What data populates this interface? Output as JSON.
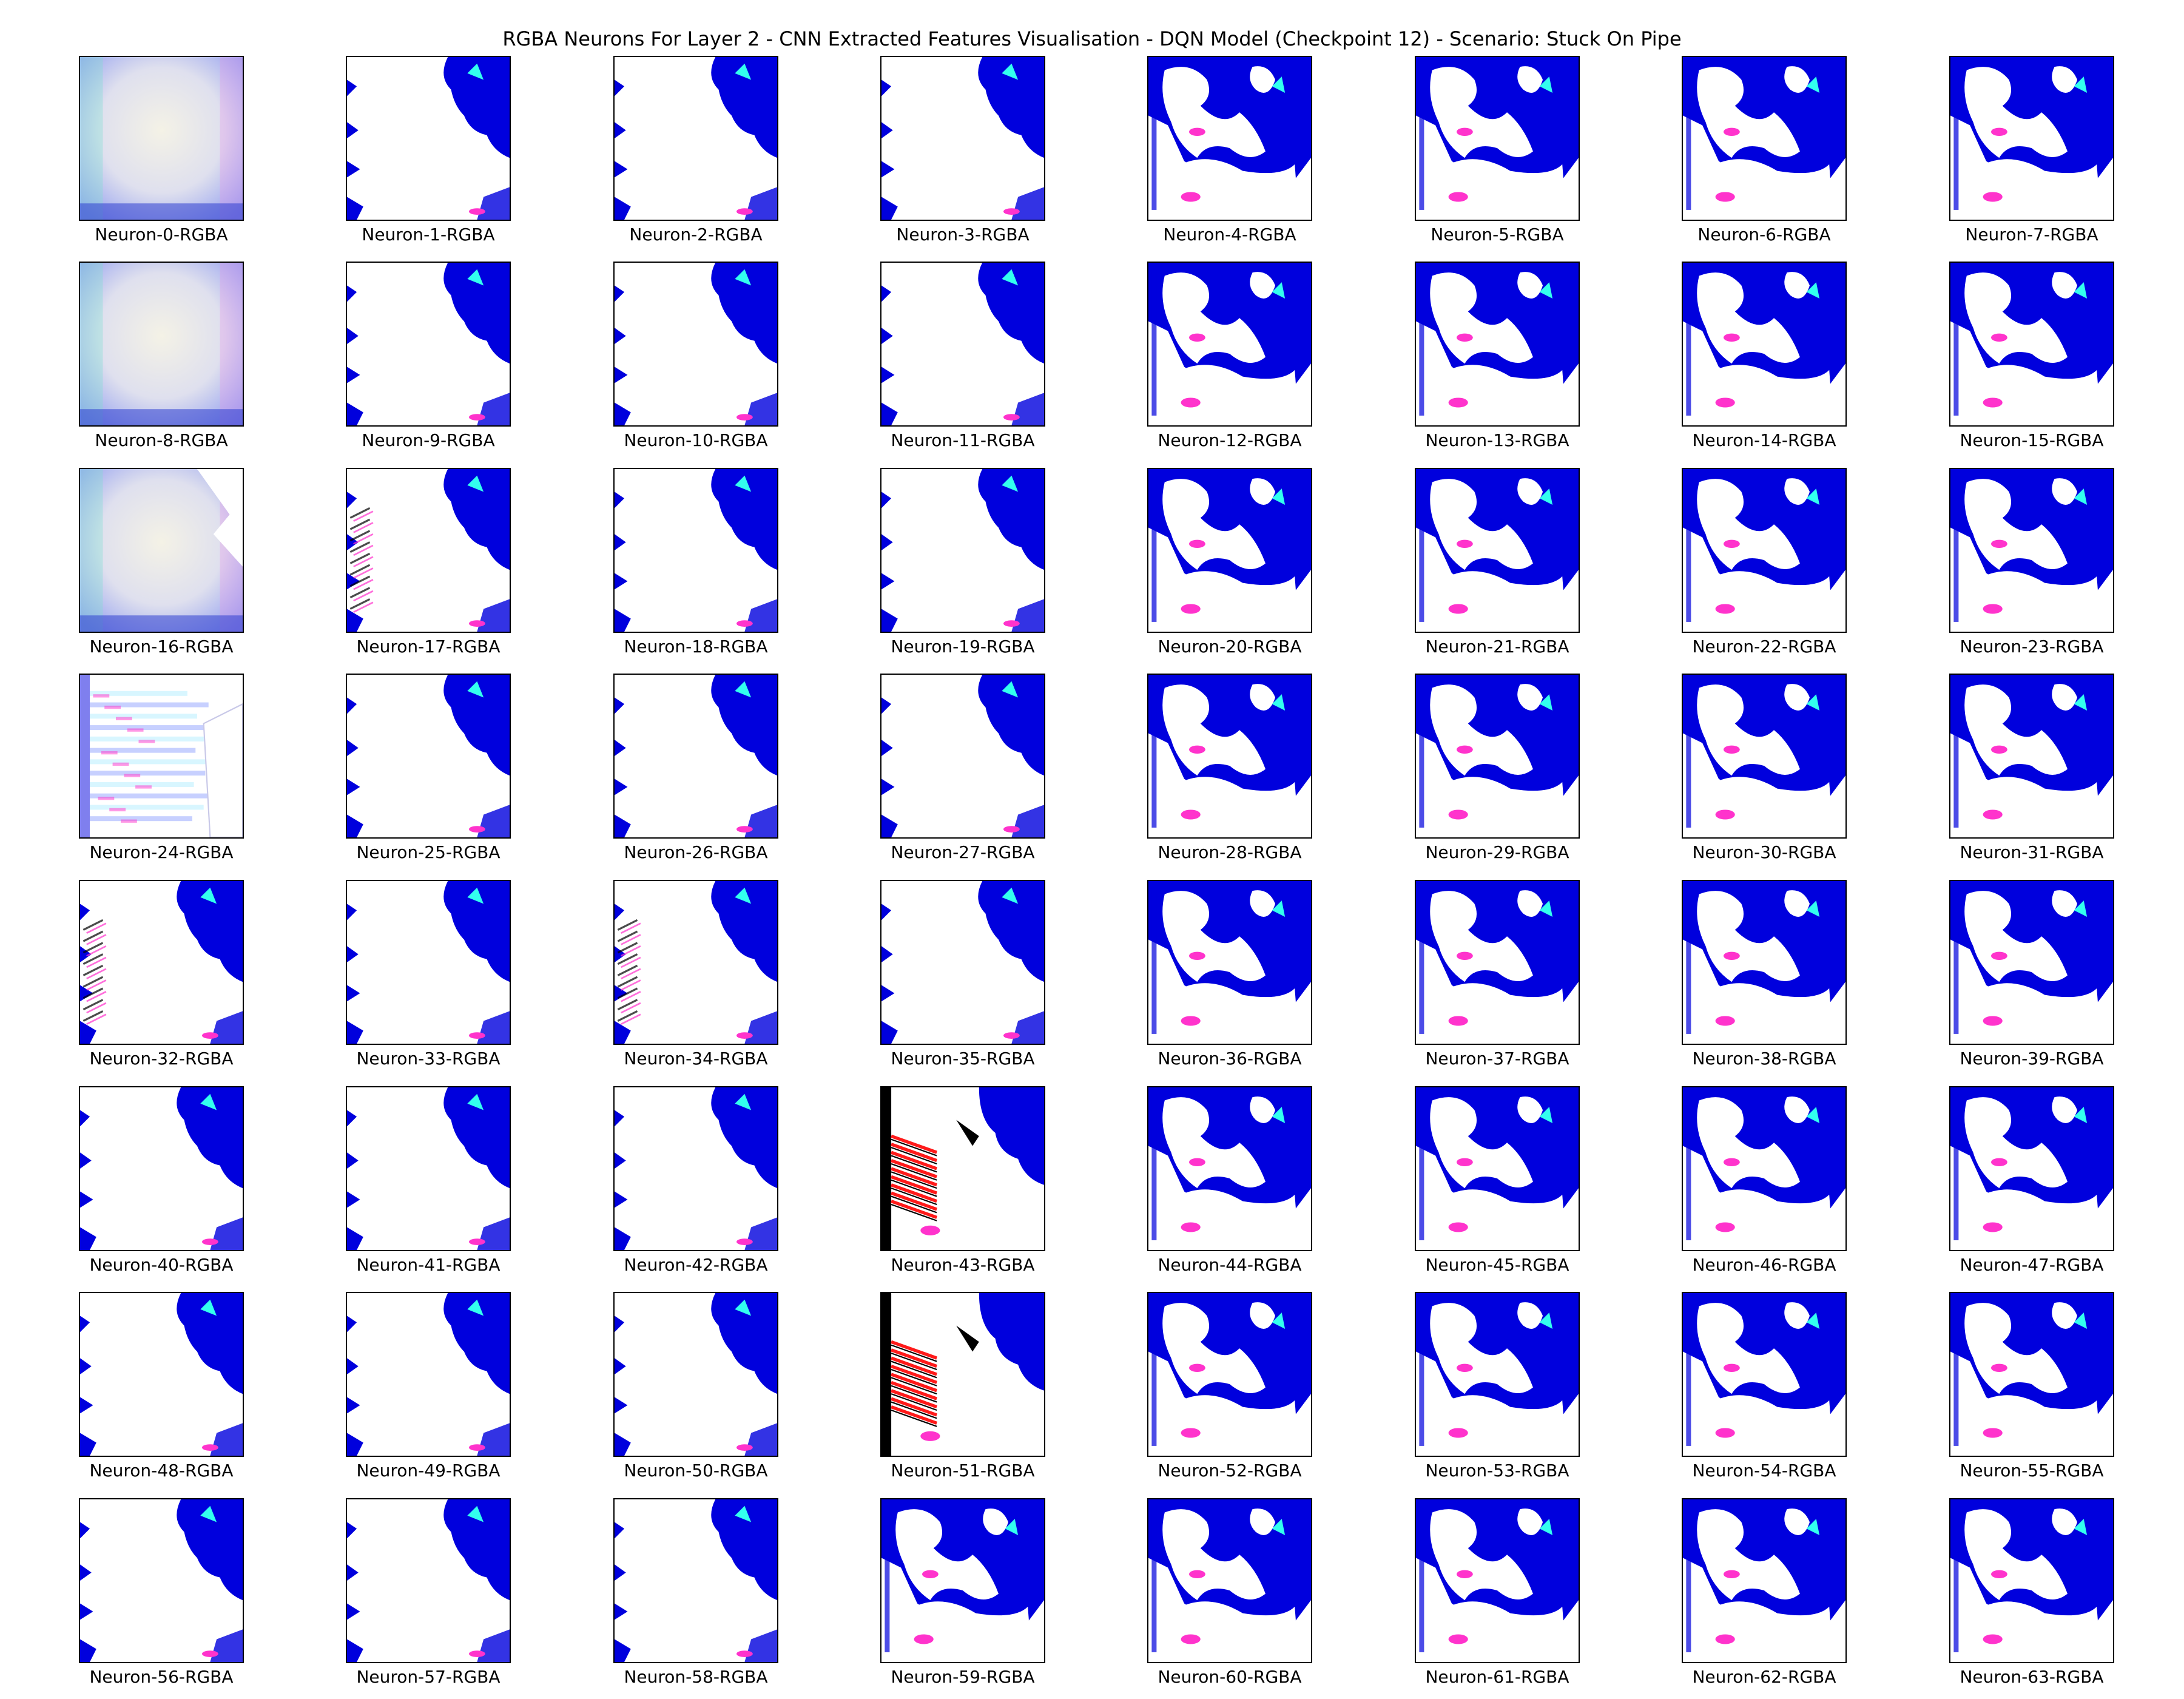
{
  "figure": {
    "title": "RGBA Neurons For Layer 2 - CNN Extracted Features Visualisation - DQN Model (Checkpoint 12) - Scenario: Stuck On Pipe"
  },
  "panels": [
    {
      "label": "Neuron-0-RGBA",
      "style": "pastel"
    },
    {
      "label": "Neuron-1-RGBA",
      "style": "light"
    },
    {
      "label": "Neuron-2-RGBA",
      "style": "light"
    },
    {
      "label": "Neuron-3-RGBA",
      "style": "light"
    },
    {
      "label": "Neuron-4-RGBA",
      "style": "dense"
    },
    {
      "label": "Neuron-5-RGBA",
      "style": "dense"
    },
    {
      "label": "Neuron-6-RGBA",
      "style": "dense"
    },
    {
      "label": "Neuron-7-RGBA",
      "style": "dense"
    },
    {
      "label": "Neuron-8-RGBA",
      "style": "pastel"
    },
    {
      "label": "Neuron-9-RGBA",
      "style": "light"
    },
    {
      "label": "Neuron-10-RGBA",
      "style": "light"
    },
    {
      "label": "Neuron-11-RGBA",
      "style": "light"
    },
    {
      "label": "Neuron-12-RGBA",
      "style": "dense"
    },
    {
      "label": "Neuron-13-RGBA",
      "style": "dense"
    },
    {
      "label": "Neuron-14-RGBA",
      "style": "dense"
    },
    {
      "label": "Neuron-15-RGBA",
      "style": "dense"
    },
    {
      "label": "Neuron-16-RGBA",
      "style": "pastel"
    },
    {
      "label": "Neuron-17-RGBA",
      "style": "noisy"
    },
    {
      "label": "Neuron-18-RGBA",
      "style": "light"
    },
    {
      "label": "Neuron-19-RGBA",
      "style": "light"
    },
    {
      "label": "Neuron-20-RGBA",
      "style": "dense"
    },
    {
      "label": "Neuron-21-RGBA",
      "style": "dense"
    },
    {
      "label": "Neuron-22-RGBA",
      "style": "dense"
    },
    {
      "label": "Neuron-23-RGBA",
      "style": "dense"
    },
    {
      "label": "Neuron-24-RGBA",
      "style": "striped"
    },
    {
      "label": "Neuron-25-RGBA",
      "style": "light"
    },
    {
      "label": "Neuron-26-RGBA",
      "style": "light"
    },
    {
      "label": "Neuron-27-RGBA",
      "style": "light"
    },
    {
      "label": "Neuron-28-RGBA",
      "style": "dense"
    },
    {
      "label": "Neuron-29-RGBA",
      "style": "dense"
    },
    {
      "label": "Neuron-30-RGBA",
      "style": "dense"
    },
    {
      "label": "Neuron-31-RGBA",
      "style": "dense"
    },
    {
      "label": "Neuron-32-RGBA",
      "style": "noisy"
    },
    {
      "label": "Neuron-33-RGBA",
      "style": "light"
    },
    {
      "label": "Neuron-34-RGBA",
      "style": "noisy"
    },
    {
      "label": "Neuron-35-RGBA",
      "style": "light"
    },
    {
      "label": "Neuron-36-RGBA",
      "style": "dense"
    },
    {
      "label": "Neuron-37-RGBA",
      "style": "dense"
    },
    {
      "label": "Neuron-38-RGBA",
      "style": "dense"
    },
    {
      "label": "Neuron-39-RGBA",
      "style": "dense"
    },
    {
      "label": "Neuron-40-RGBA",
      "style": "light"
    },
    {
      "label": "Neuron-41-RGBA",
      "style": "light"
    },
    {
      "label": "Neuron-42-RGBA",
      "style": "light"
    },
    {
      "label": "Neuron-43-RGBA",
      "style": "redstripes"
    },
    {
      "label": "Neuron-44-RGBA",
      "style": "dense"
    },
    {
      "label": "Neuron-45-RGBA",
      "style": "dense"
    },
    {
      "label": "Neuron-46-RGBA",
      "style": "dense"
    },
    {
      "label": "Neuron-47-RGBA",
      "style": "dense"
    },
    {
      "label": "Neuron-48-RGBA",
      "style": "light"
    },
    {
      "label": "Neuron-49-RGBA",
      "style": "light"
    },
    {
      "label": "Neuron-50-RGBA",
      "style": "light"
    },
    {
      "label": "Neuron-51-RGBA",
      "style": "redstripes"
    },
    {
      "label": "Neuron-52-RGBA",
      "style": "dense"
    },
    {
      "label": "Neuron-53-RGBA",
      "style": "dense"
    },
    {
      "label": "Neuron-54-RGBA",
      "style": "dense"
    },
    {
      "label": "Neuron-55-RGBA",
      "style": "dense"
    },
    {
      "label": "Neuron-56-RGBA",
      "style": "light"
    },
    {
      "label": "Neuron-57-RGBA",
      "style": "light"
    },
    {
      "label": "Neuron-58-RGBA",
      "style": "light"
    },
    {
      "label": "Neuron-59-RGBA",
      "style": "dense"
    },
    {
      "label": "Neuron-60-RGBA",
      "style": "dense"
    },
    {
      "label": "Neuron-61-RGBA",
      "style": "dense"
    },
    {
      "label": "Neuron-62-RGBA",
      "style": "dense"
    },
    {
      "label": "Neuron-63-RGBA",
      "style": "dense"
    }
  ],
  "colors": {
    "blue": "#0000dd",
    "magenta": "#ff33cc",
    "cyan": "#33ffee",
    "red": "#ff1a1a",
    "black": "#000000",
    "pastel_center": "#f4f2e6",
    "pastel_edge": "#8f9cf0"
  }
}
